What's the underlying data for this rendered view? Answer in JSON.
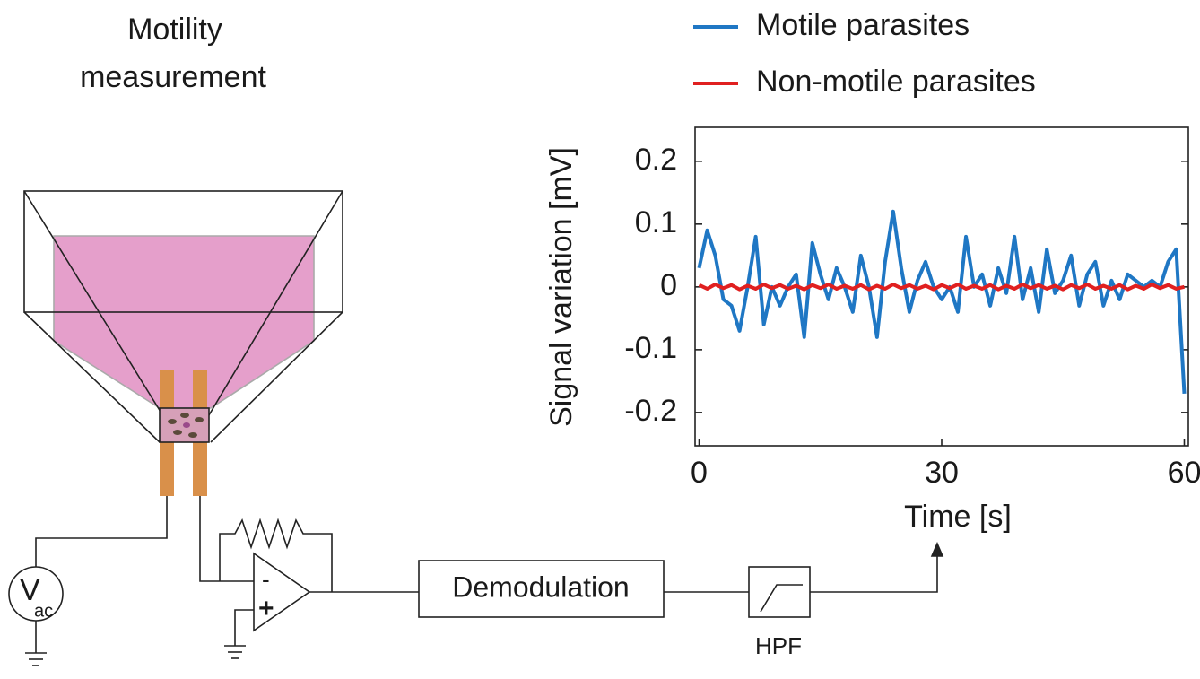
{
  "diagram": {
    "title_line1": "Motility",
    "title_line2": "measurement",
    "source_symbol": "V",
    "source_subscript": "ac",
    "minus_sign": "-",
    "plus_sign": "+",
    "demodulation": "Demodulation",
    "filter": "HPF"
  },
  "chart_data": {
    "type": "line",
    "x_label": "Time [s]",
    "y_label": "Signal variation [mV]",
    "x": [
      0,
      1,
      2,
      3,
      4,
      5,
      6,
      7,
      8,
      9,
      10,
      11,
      12,
      13,
      14,
      15,
      16,
      17,
      18,
      19,
      20,
      21,
      22,
      23,
      24,
      25,
      26,
      27,
      28,
      29,
      30,
      31,
      32,
      33,
      34,
      35,
      36,
      37,
      38,
      39,
      40,
      41,
      42,
      43,
      44,
      45,
      46,
      47,
      48,
      49,
      50,
      51,
      52,
      53,
      54,
      55,
      56,
      57,
      58,
      59,
      60
    ],
    "series": [
      {
        "name": "Motile parasites",
        "color": "#1f77c4",
        "values": [
          0.03,
          0.09,
          0.05,
          -0.02,
          -0.03,
          -0.07,
          0.0,
          0.08,
          -0.06,
          0.0,
          -0.03,
          0.0,
          0.02,
          -0.08,
          0.07,
          0.02,
          -0.02,
          0.03,
          0.0,
          -0.04,
          0.05,
          0.0,
          -0.08,
          0.04,
          0.12,
          0.03,
          -0.04,
          0.01,
          0.04,
          0.0,
          -0.02,
          0.0,
          -0.04,
          0.08,
          0.0,
          0.02,
          -0.03,
          0.03,
          -0.01,
          0.08,
          -0.02,
          0.03,
          -0.04,
          0.06,
          -0.01,
          0.01,
          0.05,
          -0.03,
          0.02,
          0.04,
          -0.03,
          0.01,
          -0.02,
          0.02,
          0.01,
          0.0,
          0.01,
          0.0,
          0.04,
          0.06,
          -0.17
        ]
      },
      {
        "name": "Non-motile parasites",
        "color": "#e02020",
        "values": [
          0.003,
          -0.003,
          0.004,
          -0.002,
          0.003,
          -0.004,
          0.002,
          -0.003,
          0.004,
          -0.002,
          0.003,
          -0.003,
          0.002,
          -0.004,
          0.003,
          -0.002,
          0.004,
          -0.003,
          0.002,
          -0.003,
          0.003,
          -0.004,
          0.002,
          -0.003,
          0.004,
          -0.002,
          0.003,
          -0.003,
          0.002,
          -0.004,
          0.003,
          -0.002,
          0.004,
          -0.003,
          0.002,
          -0.003,
          0.003,
          -0.004,
          0.002,
          -0.003,
          0.004,
          -0.002,
          0.003,
          -0.003,
          0.002,
          -0.004,
          0.003,
          -0.002,
          0.004,
          -0.003,
          0.002,
          -0.003,
          0.003,
          -0.004,
          0.002,
          -0.003,
          0.004,
          -0.002,
          0.003,
          -0.003,
          0.0
        ]
      }
    ],
    "xlim": [
      -0.5,
      60.5
    ],
    "xticks": [
      0,
      30,
      60
    ],
    "ylim": [
      -0.253,
      0.254
    ],
    "yticks": [
      0.2,
      0.1,
      0,
      -0.1,
      -0.2
    ]
  }
}
